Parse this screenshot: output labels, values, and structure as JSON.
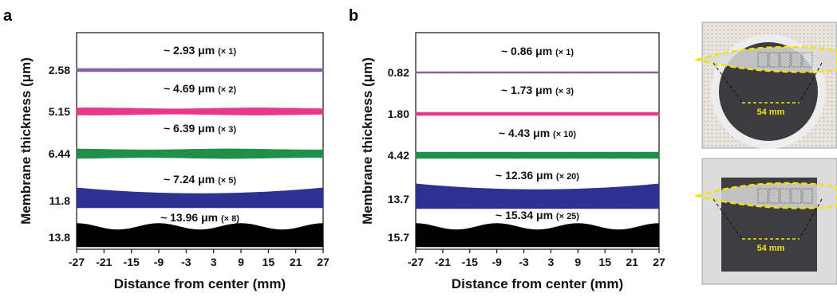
{
  "chart_data": [
    {
      "type": "area",
      "panel_label": "a",
      "xlabel": "Distance from center (mm)",
      "ylabel": "Membrane thickness (μm)",
      "x_ticks": [
        -27,
        -21,
        -15,
        -9,
        -3,
        3,
        9,
        15,
        21,
        27
      ],
      "xlim": [
        -27,
        27
      ],
      "y_tick_labels": [
        "2.58",
        "5.15",
        "6.44",
        "11.8",
        "13.8"
      ],
      "grid": false,
      "series": [
        {
          "label": "~ 2.93 μm",
          "multiplier": "(× 1)",
          "y_tick": "2.58",
          "color": "#8064a2",
          "thickness": 2.93,
          "multiplier_value": 1,
          "profile": "flat"
        },
        {
          "label": "~ 4.69 μm",
          "multiplier": "(× 2)",
          "y_tick": "5.15",
          "color": "#e8388c",
          "thickness": 4.69,
          "multiplier_value": 2,
          "profile": "slight"
        },
        {
          "label": "~ 6.39 μm",
          "multiplier": "(× 3)",
          "y_tick": "6.44",
          "color": "#1f8f4a",
          "thickness": 6.39,
          "multiplier_value": 3,
          "profile": "slight"
        },
        {
          "label": "~ 7.24 μm",
          "multiplier": "(× 5)",
          "y_tick": "11.8",
          "color": "#2e3192",
          "thickness": 7.24,
          "multiplier_value": 5,
          "profile": "edge-thick"
        },
        {
          "label": "~ 13.96 μm",
          "multiplier": "(× 8)",
          "y_tick": "13.8",
          "color": "#000000",
          "thickness": 13.96,
          "multiplier_value": 8,
          "profile": "wavy"
        }
      ]
    },
    {
      "type": "area",
      "panel_label": "b",
      "xlabel": "Distance from center (mm)",
      "ylabel": "Membrane thickness (μm)",
      "x_ticks": [
        -27,
        -21,
        -15,
        -9,
        -3,
        3,
        9,
        15,
        21,
        27
      ],
      "xlim": [
        -27,
        27
      ],
      "y_tick_labels": [
        "0.82",
        "1.80",
        "4.42",
        "13.7",
        "15.7"
      ],
      "grid": false,
      "series": [
        {
          "label": "~ 0.86 μm",
          "multiplier": "(× 1)",
          "y_tick": "0.82",
          "color": "#8064a2",
          "thickness": 0.86,
          "multiplier_value": 1,
          "profile": "flat"
        },
        {
          "label": "~ 1.73 μm",
          "multiplier": "(× 3)",
          "y_tick": "1.80",
          "color": "#e8388c",
          "thickness": 1.73,
          "multiplier_value": 3,
          "profile": "flat"
        },
        {
          "label": "~ 4.43 μm",
          "multiplier": "(× 10)",
          "y_tick": "4.42",
          "color": "#1f8f4a",
          "thickness": 4.43,
          "multiplier_value": 10,
          "profile": "flat"
        },
        {
          "label": "~ 12.36 μm",
          "multiplier": "(× 20)",
          "y_tick": "13.7",
          "color": "#2e3192",
          "thickness": 12.36,
          "multiplier_value": 20,
          "profile": "edge-thick"
        },
        {
          "label": "~ 15.34 μm",
          "multiplier": "(× 25)",
          "y_tick": "15.7",
          "color": "#000000",
          "thickness": 15.34,
          "multiplier_value": 25,
          "profile": "wavy"
        }
      ]
    }
  ],
  "photos": [
    {
      "substrate": "circular",
      "label": "54 mm"
    },
    {
      "substrate": "square",
      "label": "54 mm"
    }
  ]
}
